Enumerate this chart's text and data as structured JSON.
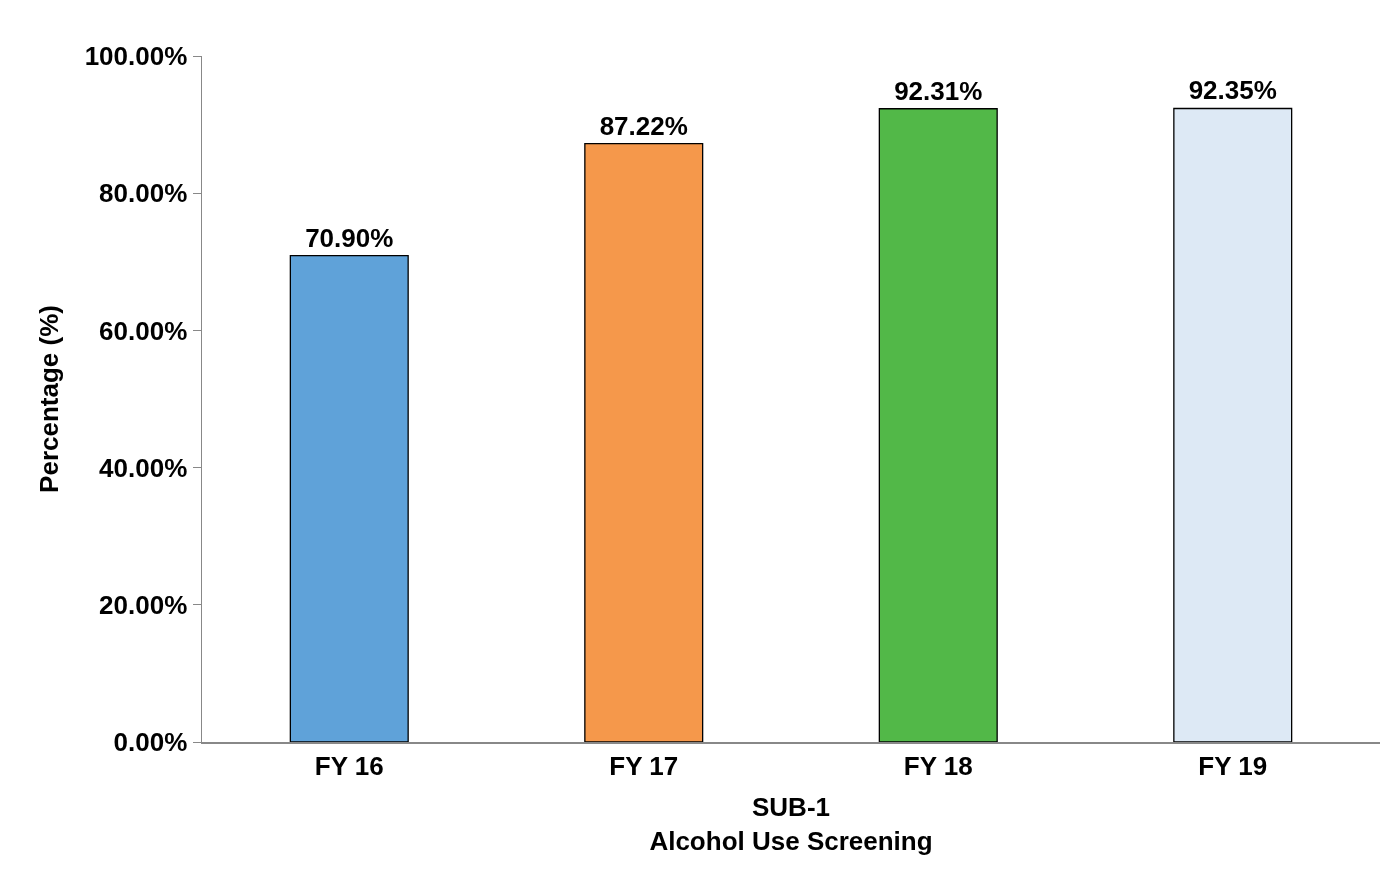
{
  "chart_data": {
    "type": "bar",
    "xlabel": "SUB-1\nAlcohol Use Screening",
    "ylabel": "Percentage (%)",
    "categories": [
      "FY 16",
      "FY 17",
      "FY 18",
      "FY 19"
    ],
    "values": [
      70.9,
      87.22,
      92.31,
      92.35
    ],
    "colors": [
      "#5fa2d9",
      "#f5984b",
      "#52b848",
      "#dde9f5"
    ],
    "value_labels": [
      "70.90%",
      "87.22%",
      "92.31%",
      "92.35%"
    ],
    "ylim": [
      0,
      100
    ],
    "yticks": [
      {
        "value": 0,
        "label": "0.00%"
      },
      {
        "value": 20,
        "label": "20.00%"
      },
      {
        "value": 40,
        "label": "40.00%"
      },
      {
        "value": 60,
        "label": "60.00%"
      },
      {
        "value": 80,
        "label": "80.00%"
      },
      {
        "value": 100,
        "label": "100.00%"
      }
    ],
    "grid": false,
    "legend": false
  }
}
